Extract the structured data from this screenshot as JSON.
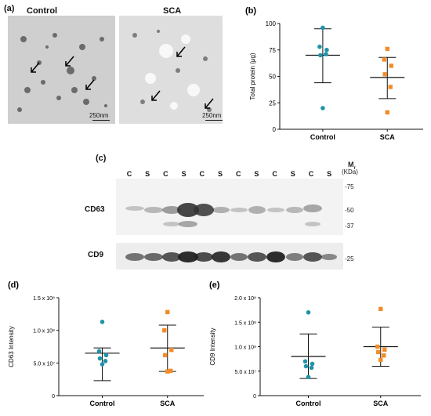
{
  "panels": {
    "a": {
      "label": "(a)",
      "images": [
        {
          "label": "Control",
          "scale_bar": "250nm"
        },
        {
          "label": "SCA",
          "scale_bar": "250nm"
        }
      ]
    },
    "c": {
      "label": "(c)",
      "lanes": [
        "C",
        "S",
        "C",
        "S",
        "C",
        "S",
        "C",
        "S",
        "C",
        "S",
        "C",
        "S"
      ],
      "mr_header": "M",
      "mr_sub": "r",
      "mr_unit": "(KDa)",
      "markers": [
        "-75",
        "-50",
        "-37",
        "-25"
      ],
      "rows": [
        "CD63",
        "CD9"
      ]
    }
  },
  "chart_data": [
    {
      "panel": "(b)",
      "type": "scatter",
      "ylabel": "Total protein (μg)",
      "ylim": [
        0,
        100
      ],
      "yticks": [
        "0",
        "25",
        "50",
        "75",
        "100"
      ],
      "categories": [
        "Control",
        "SCA"
      ],
      "colors": [
        "#1f93a8",
        "#f28c28"
      ],
      "series": [
        {
          "values": [
            96,
            78,
            75,
            70,
            71,
            20
          ],
          "mean": 70,
          "sd_low": 44,
          "sd_high": 95
        },
        {
          "values": [
            76,
            66,
            60,
            52,
            40,
            16
          ],
          "mean": 49,
          "sd_low": 29,
          "sd_high": 68
        }
      ]
    },
    {
      "panel": "(d)",
      "type": "scatter",
      "ylabel": "CD63 Intensity",
      "ylim": [
        0,
        150000000
      ],
      "yticks": [
        "0",
        "5.0 x 10⁷",
        "1.0 x 10⁸",
        "1.5 x 10⁸"
      ],
      "categories": [
        "Control",
        "SCA"
      ],
      "colors": [
        "#1f93a8",
        "#f28c28"
      ],
      "series": [
        {
          "values": [
            113000000,
            68000000,
            62000000,
            57000000,
            53000000,
            48000000
          ],
          "mean": 65000000,
          "sd_low": 23000000,
          "sd_high": 73000000
        },
        {
          "values": [
            128000000,
            100000000,
            70000000,
            62000000,
            38000000,
            37000000
          ],
          "mean": 73000000,
          "sd_low": 37000000,
          "sd_high": 108000000
        }
      ]
    },
    {
      "panel": "(e)",
      "type": "scatter",
      "ylabel": "CD9 Intensity",
      "ylim": [
        0,
        200000000
      ],
      "yticks": [
        "0",
        "5.0 x 10⁷",
        "1.0 x 10⁸",
        "1.5 x 10⁸",
        "2.0 x 10⁸"
      ],
      "categories": [
        "Control",
        "SCA"
      ],
      "colors": [
        "#1f93a8",
        "#f28c28"
      ],
      "series": [
        {
          "values": [
            170000000,
            70000000,
            65000000,
            60000000,
            57000000,
            38000000
          ],
          "mean": 80000000,
          "sd_low": 35000000,
          "sd_high": 126000000
        },
        {
          "values": [
            177000000,
            100000000,
            94000000,
            89000000,
            82000000,
            73000000
          ],
          "mean": 100000000,
          "sd_low": 60000000,
          "sd_high": 140000000
        }
      ]
    }
  ]
}
